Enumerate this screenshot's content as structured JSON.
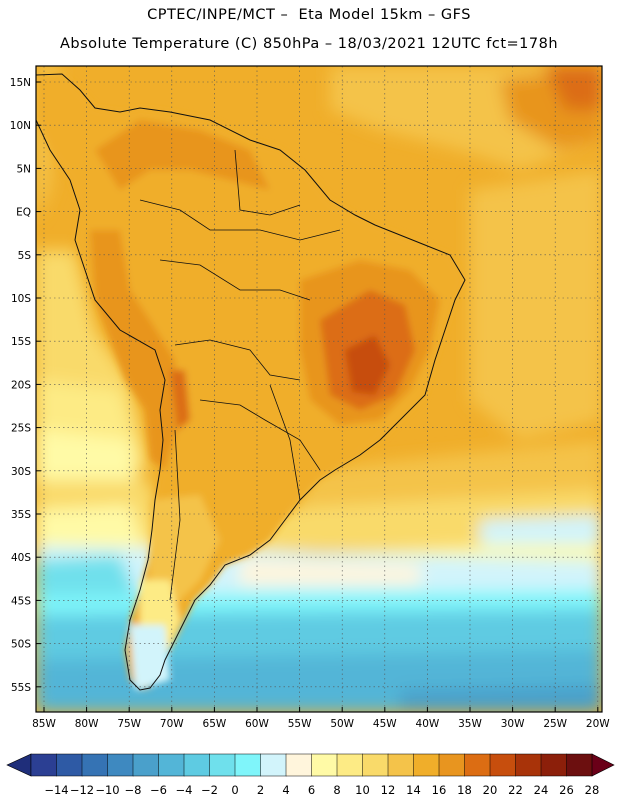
{
  "header": {
    "line1": "CPTEC/INPE/MCT –  Eta Model 15km – GFS",
    "line2": "Absolute Temperature (C) 850hPa – 18/03/2021 12UTC fct=178h"
  },
  "axes": {
    "lat_labels": [
      "15N",
      "10N",
      "5N",
      "EQ",
      "5S",
      "10S",
      "15S",
      "20S",
      "25S",
      "30S",
      "35S",
      "40S",
      "45S",
      "50S",
      "55S"
    ],
    "lon_labels": [
      "85W",
      "80W",
      "75W",
      "70W",
      "65W",
      "60W",
      "55W",
      "50W",
      "45W",
      "40W",
      "35W",
      "30W",
      "25W",
      "20W"
    ]
  },
  "colorbar": {
    "ticks": [
      "-14",
      "-12",
      "-10",
      "-8",
      "-6",
      "-4",
      "-2",
      "0",
      "2",
      "4",
      "6",
      "8",
      "10",
      "12",
      "14",
      "16",
      "18",
      "20",
      "22",
      "24",
      "26",
      "28"
    ],
    "colors": [
      "#2b3f93",
      "#2e5aa5",
      "#3573b4",
      "#3e89c0",
      "#4aa0cb",
      "#53b5d7",
      "#5ecbe2",
      "#6fe0ec",
      "#7ff5fa",
      "#d2f4fb",
      "#fff5dc",
      "#fffaa6",
      "#fdeb85",
      "#f9da6a",
      "#f4c34a",
      "#f0ae2a",
      "#e8951f",
      "#dc6d13",
      "#c74e0d",
      "#a83309",
      "#8c1f0a",
      "#6c0f0f"
    ],
    "low_arrow_color": "#1f2e7a",
    "high_arrow_color": "#6a0018"
  }
}
